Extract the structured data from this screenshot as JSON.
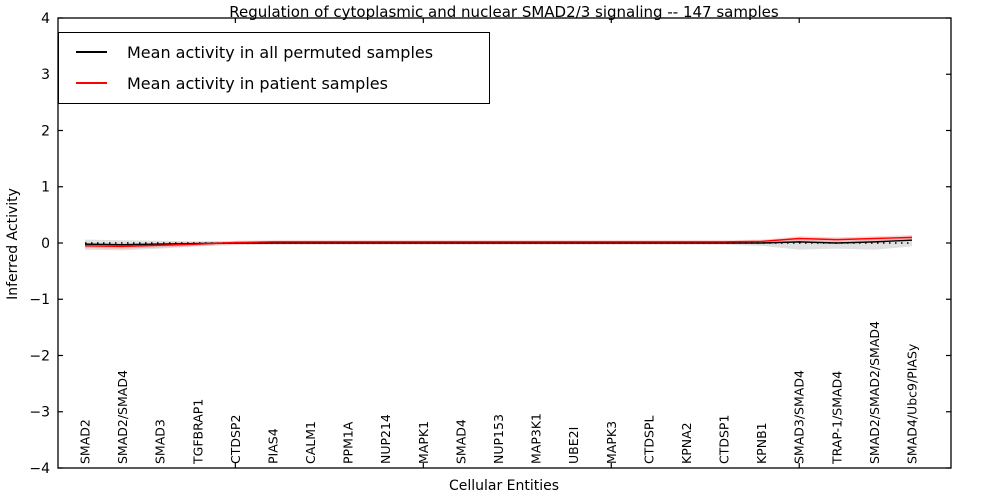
{
  "chart_data": {
    "type": "line",
    "title": "Regulation of cytoplasmic and nuclear SMAD2/3 signaling -- 147 samples",
    "xlabel": "Cellular Entities",
    "ylabel": "Inferred Activity",
    "ylim": [
      -4,
      4
    ],
    "yticks": [
      -4,
      -3,
      -2,
      -1,
      0,
      1,
      2,
      3,
      4
    ],
    "ytick_labels": [
      "−4",
      "−3",
      "−2",
      "−1",
      "0",
      "1",
      "2",
      "3",
      "4"
    ],
    "xtick_category_indices": [
      4,
      9,
      14,
      19
    ],
    "grid": false,
    "legend_position": "upper left",
    "categories": [
      "SMAD2",
      "SMAD2/SMAD4",
      "SMAD3",
      "TGFBRAP1",
      "CTDSP2",
      "PIAS4",
      "CALM1",
      "PPM1A",
      "NUP214",
      "MAPK1",
      "SMAD4",
      "NUP153",
      "MAP3K1",
      "UBE2I",
      "MAPK3",
      "CTDSPL",
      "KPNA2",
      "CTDSP1",
      "KPNB1",
      "SMAD3/SMAD4",
      "TRAP-1/SMAD4",
      "SMAD2/SMAD2/SMAD4",
      "SMAD4/Ubc9/PIASy"
    ],
    "series": [
      {
        "name": "Mean activity in all permuted samples",
        "color": "#000000",
        "style": "solid",
        "values": [
          -0.02,
          -0.03,
          -0.02,
          -0.01,
          0.0,
          0.0,
          0.0,
          0.0,
          0.0,
          0.0,
          0.0,
          0.0,
          0.0,
          0.0,
          0.0,
          0.0,
          0.0,
          0.0,
          0.0,
          0.02,
          0.0,
          0.02,
          0.05
        ]
      },
      {
        "name": "Mean activity in patient samples",
        "color": "#ff0000",
        "style": "solid",
        "values": [
          -0.05,
          -0.06,
          -0.04,
          -0.02,
          0.01,
          0.02,
          0.02,
          0.02,
          0.02,
          0.02,
          0.02,
          0.02,
          0.02,
          0.02,
          0.02,
          0.02,
          0.02,
          0.02,
          0.03,
          0.08,
          0.06,
          0.08,
          0.1
        ]
      }
    ],
    "bands": [
      {
        "name": "permuted-samples-range",
        "color": "#000000",
        "opacity": 0.12,
        "low": [
          -0.12,
          -0.13,
          -0.1,
          -0.06,
          -0.04,
          -0.03,
          -0.03,
          -0.03,
          -0.03,
          -0.03,
          -0.03,
          -0.03,
          -0.03,
          -0.03,
          -0.03,
          -0.03,
          -0.03,
          -0.03,
          -0.05,
          -0.12,
          -0.1,
          -0.12,
          -0.06
        ],
        "high": [
          0.06,
          0.05,
          0.04,
          0.03,
          0.02,
          0.02,
          0.02,
          0.02,
          0.02,
          0.02,
          0.02,
          0.02,
          0.02,
          0.02,
          0.02,
          0.02,
          0.02,
          0.02,
          0.03,
          0.06,
          0.04,
          0.06,
          0.09
        ]
      },
      {
        "name": "patient-samples-range",
        "color": "#ff0000",
        "opacity": 0.18,
        "low": [
          -0.09,
          -0.1,
          -0.08,
          -0.05,
          -0.02,
          -0.01,
          -0.01,
          -0.01,
          -0.01,
          -0.01,
          -0.01,
          -0.01,
          -0.01,
          -0.01,
          -0.01,
          -0.01,
          -0.01,
          -0.01,
          0.0,
          0.04,
          0.02,
          0.04,
          0.06
        ],
        "high": [
          -0.01,
          -0.02,
          0.0,
          0.02,
          0.04,
          0.05,
          0.05,
          0.05,
          0.05,
          0.05,
          0.05,
          0.05,
          0.05,
          0.05,
          0.05,
          0.05,
          0.05,
          0.05,
          0.06,
          0.12,
          0.1,
          0.12,
          0.14
        ]
      }
    ],
    "reference_line": {
      "y": 0,
      "style": "dotted",
      "color": "#000000"
    }
  }
}
